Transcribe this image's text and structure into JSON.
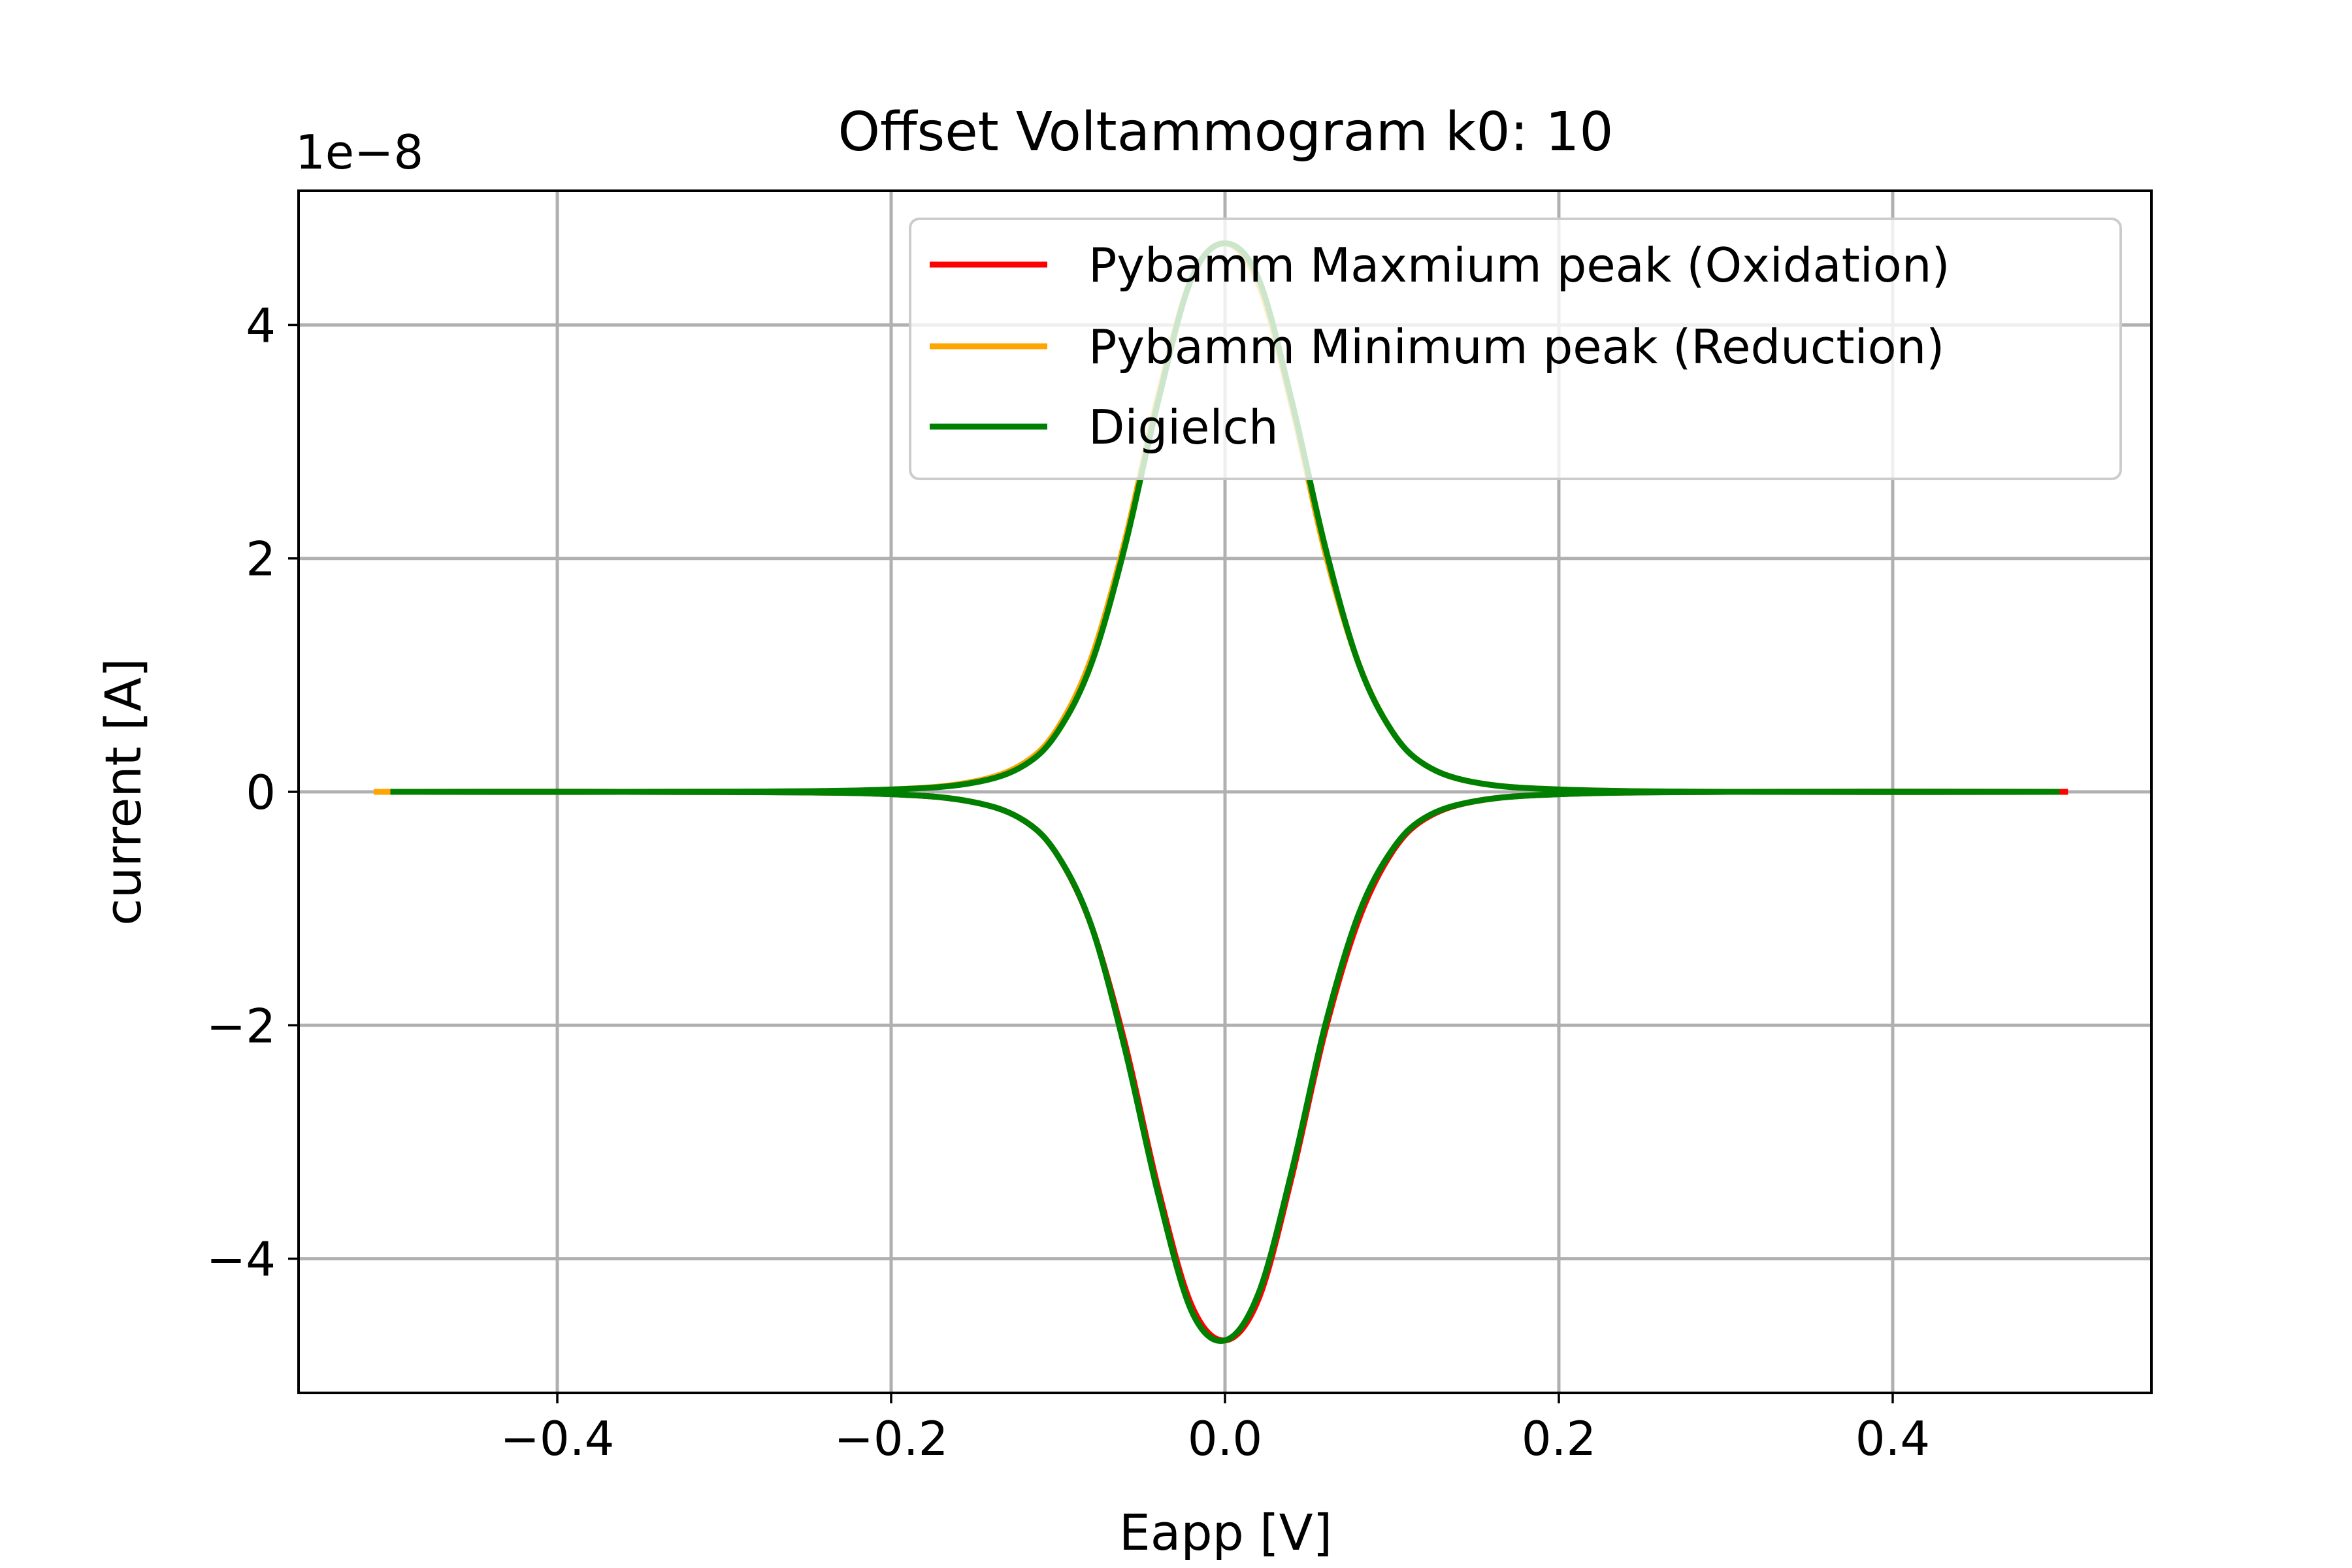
{
  "chart_data": {
    "type": "line",
    "title": "Offset Voltammogram k0: 10",
    "xlabel": "Eapp [V]",
    "ylabel": "current [A]",
    "y_offset_label": "1e−8",
    "xlim": [
      -0.555,
      0.555
    ],
    "ylim": [
      -5.15e-08,
      5.15e-08
    ],
    "x_ticks": [
      -0.4,
      -0.2,
      0.0,
      0.2,
      0.4
    ],
    "x_tick_labels": [
      "−0.4",
      "−0.2",
      "0.0",
      "0.2",
      "0.4"
    ],
    "y_ticks": [
      -4e-08,
      -2e-08,
      0,
      2e-08,
      4e-08
    ],
    "y_tick_labels": [
      "−4",
      "−2",
      "0",
      "2",
      "4"
    ],
    "grid": true,
    "legend_position": "top-right",
    "series": [
      {
        "name": "Pybamm Maxmium peak (Oxidation)",
        "color": "#ff0000",
        "x_range": [
          -0.505,
          0.505
        ],
        "peak_position": 0.0,
        "peak_value": -4.7e-08,
        "points": [
          [
            -0.505,
            0.0
          ],
          [
            -0.3,
            -1e-11
          ],
          [
            -0.2,
            -2e-10
          ],
          [
            -0.15,
            -9e-10
          ],
          [
            -0.12,
            -2.5e-09
          ],
          [
            -0.1,
            -5.5e-09
          ],
          [
            -0.08,
            -1.15e-08
          ],
          [
            -0.06,
            -2.15e-08
          ],
          [
            -0.04,
            -3.4e-08
          ],
          [
            -0.02,
            -4.4e-08
          ],
          [
            0.0,
            -4.7e-08
          ],
          [
            0.02,
            -4.35e-08
          ],
          [
            0.04,
            -3.3e-08
          ],
          [
            0.06,
            -2.05e-08
          ],
          [
            0.08,
            -1.1e-08
          ],
          [
            0.1,
            -5.2e-09
          ],
          [
            0.12,
            -2.3e-09
          ],
          [
            0.15,
            -8e-10
          ],
          [
            0.2,
            -2e-10
          ],
          [
            0.3,
            0.0
          ],
          [
            0.505,
            0.0
          ]
        ]
      },
      {
        "name": "Pybamm Minimum peak (Reduction)",
        "color": "#ffa500",
        "x_range": [
          -0.51,
          0.5
        ],
        "peak_position": 0.0,
        "peak_value": 4.7e-08,
        "points": [
          [
            -0.51,
            0.0
          ],
          [
            -0.3,
            1e-11
          ],
          [
            -0.2,
            2e-10
          ],
          [
            -0.15,
            9e-10
          ],
          [
            -0.12,
            2.5e-09
          ],
          [
            -0.1,
            5.5e-09
          ],
          [
            -0.08,
            1.15e-08
          ],
          [
            -0.06,
            2.15e-08
          ],
          [
            -0.04,
            3.4e-08
          ],
          [
            -0.02,
            4.4e-08
          ],
          [
            0.0,
            4.7e-08
          ],
          [
            0.02,
            4.35e-08
          ],
          [
            0.04,
            3.3e-08
          ],
          [
            0.06,
            2.05e-08
          ],
          [
            0.08,
            1.1e-08
          ],
          [
            0.1,
            5.2e-09
          ],
          [
            0.12,
            2.3e-09
          ],
          [
            0.15,
            8e-10
          ],
          [
            0.2,
            2e-10
          ],
          [
            0.3,
            0.0
          ],
          [
            0.5,
            0.0
          ]
        ]
      },
      {
        "name": "Digielch",
        "color": "#008000",
        "x_range": [
          -0.5,
          0.5
        ],
        "peak_position": 0.0,
        "peak_value": 4.7e-08,
        "trough_value": -4.7e-08,
        "points_upper": [
          [
            -0.5,
            0.0
          ],
          [
            -0.3,
            1e-11
          ],
          [
            -0.2,
            2e-10
          ],
          [
            -0.15,
            8e-10
          ],
          [
            -0.12,
            2.3e-09
          ],
          [
            -0.1,
            5.2e-09
          ],
          [
            -0.08,
            1.1e-08
          ],
          [
            -0.06,
            2.1e-08
          ],
          [
            -0.04,
            3.35e-08
          ],
          [
            -0.02,
            4.4e-08
          ],
          [
            0.0,
            4.7e-08
          ],
          [
            0.02,
            4.4e-08
          ],
          [
            0.04,
            3.35e-08
          ],
          [
            0.06,
            2.1e-08
          ],
          [
            0.08,
            1.1e-08
          ],
          [
            0.1,
            5.2e-09
          ],
          [
            0.12,
            2.3e-09
          ],
          [
            0.15,
            8e-10
          ],
          [
            0.2,
            2e-10
          ],
          [
            0.3,
            0.0
          ],
          [
            0.5,
            0.0
          ]
        ],
        "points_lower": [
          [
            -0.5,
            0.0
          ],
          [
            -0.3,
            -1e-11
          ],
          [
            -0.2,
            -2e-10
          ],
          [
            -0.15,
            -9e-10
          ],
          [
            -0.12,
            -2.5e-09
          ],
          [
            -0.1,
            -5.5e-09
          ],
          [
            -0.08,
            -1.15e-08
          ],
          [
            -0.06,
            -2.2e-08
          ],
          [
            -0.04,
            -3.45e-08
          ],
          [
            -0.02,
            -4.45e-08
          ],
          [
            0.0,
            -4.7e-08
          ],
          [
            0.02,
            -4.3e-08
          ],
          [
            0.04,
            -3.25e-08
          ],
          [
            0.06,
            -2e-08
          ],
          [
            0.08,
            -1.05e-08
          ],
          [
            0.1,
            -5e-09
          ],
          [
            0.12,
            -2.2e-09
          ],
          [
            0.15,
            -8e-10
          ],
          [
            0.2,
            -2e-10
          ],
          [
            0.3,
            0.0
          ],
          [
            0.5,
            0.0
          ]
        ]
      }
    ]
  }
}
